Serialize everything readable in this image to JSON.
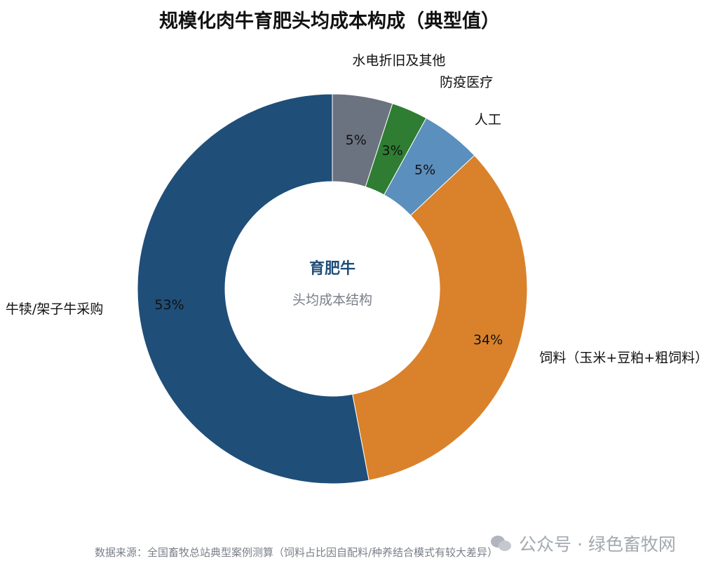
{
  "chart_data": {
    "type": "pie",
    "title": "规模化肉牛育肥头均成本构成（典型值）",
    "center_title": "育肥牛",
    "center_subtitle": "头均成本结构",
    "slices": [
      {
        "label": "水电折旧及其他",
        "value": 5,
        "value_label": "5%",
        "color": "#6c7380"
      },
      {
        "label": "防疫医疗",
        "value": 3,
        "value_label": "3%",
        "color": "#2e7d32"
      },
      {
        "label": "人工",
        "value": 5,
        "value_label": "5%",
        "color": "#5b8fbd"
      },
      {
        "label": "饲料（玉米+豆粕+粗饲料）",
        "value": 34,
        "value_label": "34%",
        "color": "#d9822b"
      },
      {
        "label": "牛犊/架子牛采购",
        "value": 53,
        "value_label": "53%",
        "color": "#1f4e79"
      }
    ]
  },
  "footer": {
    "source": "数据来源：全国畜牧总站典型案例测算（饲料占比因自配料/种养结合模式有较大差异）",
    "watermark": "公众号 · 绿色畜牧网"
  }
}
